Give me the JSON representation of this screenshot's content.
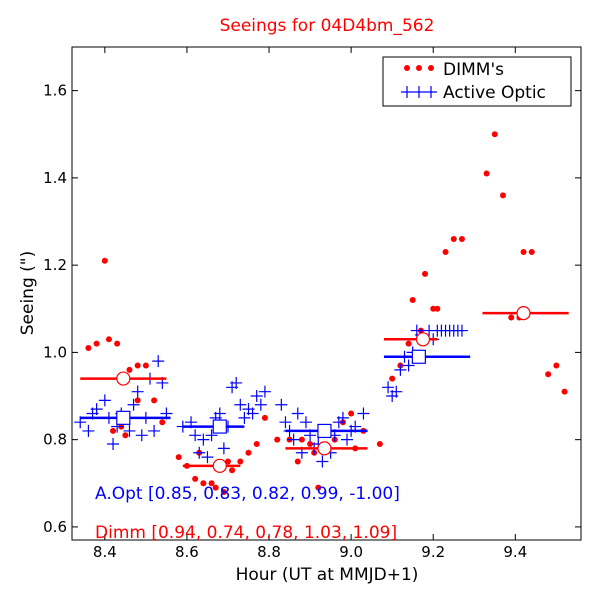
{
  "chart_data": {
    "type": "scatter",
    "title": "Seeings for 04D4bm_562",
    "xlabel": "Hour (UT at MMJD+1)",
    "ylabel": "Seeing (\")",
    "xlim": [
      8.32,
      9.56
    ],
    "ylim": [
      0.57,
      1.7
    ],
    "xticks": [
      8.4,
      8.6,
      8.8,
      9.0,
      9.2,
      9.4
    ],
    "xtick_labels": [
      "8.4",
      "8.6",
      "8.8",
      "9.0",
      "9.2",
      "9.4"
    ],
    "yticks": [
      0.6,
      0.8,
      1.0,
      1.2,
      1.4,
      1.6
    ],
    "ytick_labels": [
      "0.6",
      "0.8",
      "1.0",
      "1.2",
      "1.4",
      "1.6"
    ],
    "legend": {
      "position": "top-right",
      "entries": [
        "DIMM's",
        "Active Optic"
      ]
    },
    "colors": {
      "dimm": "#ff0000",
      "aopt": "#0000ff",
      "text": "#000000"
    },
    "annotations": {
      "aopt_summary": "A.Opt [0.85, 0.83, 0.82, 0.99, -1.00]",
      "dimm_summary": "Dimm [0.94, 0.74, 0.78, 1.03, 1.09]"
    },
    "series": [
      {
        "name": "DIMM's",
        "marker": "dot",
        "points": [
          [
            8.36,
            1.01
          ],
          [
            8.38,
            1.02
          ],
          [
            8.4,
            1.21
          ],
          [
            8.41,
            1.03
          ],
          [
            8.43,
            1.02
          ],
          [
            8.42,
            0.82
          ],
          [
            8.44,
            0.83
          ],
          [
            8.46,
            0.96
          ],
          [
            8.48,
            0.97
          ],
          [
            8.5,
            0.97
          ],
          [
            8.48,
            0.89
          ],
          [
            8.52,
            0.89
          ],
          [
            8.54,
            0.84
          ],
          [
            8.45,
            0.81
          ],
          [
            8.58,
            0.76
          ],
          [
            8.6,
            0.74
          ],
          [
            8.62,
            0.71
          ],
          [
            8.63,
            0.77
          ],
          [
            8.64,
            0.7
          ],
          [
            8.66,
            0.7
          ],
          [
            8.67,
            0.69
          ],
          [
            8.69,
            0.68
          ],
          [
            8.7,
            0.75
          ],
          [
            8.71,
            0.73
          ],
          [
            8.73,
            0.75
          ],
          [
            8.75,
            0.77
          ],
          [
            8.77,
            0.79
          ],
          [
            8.79,
            0.85
          ],
          [
            8.82,
            0.8
          ],
          [
            8.85,
            0.8
          ],
          [
            8.87,
            0.75
          ],
          [
            8.88,
            0.8
          ],
          [
            8.9,
            0.79
          ],
          [
            8.91,
            0.77
          ],
          [
            8.92,
            0.69
          ],
          [
            8.94,
            0.78
          ],
          [
            8.96,
            0.8
          ],
          [
            8.98,
            0.84
          ],
          [
            9.0,
            0.86
          ],
          [
            9.01,
            0.78
          ],
          [
            9.03,
            0.82
          ],
          [
            9.07,
            0.79
          ],
          [
            9.1,
            0.94
          ],
          [
            9.12,
            0.97
          ],
          [
            9.14,
            1.02
          ],
          [
            9.15,
            1.12
          ],
          [
            9.17,
            1.05
          ],
          [
            9.18,
            1.18
          ],
          [
            9.2,
            1.1
          ],
          [
            9.21,
            1.1
          ],
          [
            9.23,
            1.23
          ],
          [
            9.25,
            1.26
          ],
          [
            9.27,
            1.26
          ],
          [
            9.33,
            1.41
          ],
          [
            9.35,
            1.5
          ],
          [
            9.37,
            1.36
          ],
          [
            9.39,
            1.08
          ],
          [
            9.41,
            1.08
          ],
          [
            9.42,
            1.23
          ],
          [
            9.44,
            1.23
          ],
          [
            9.48,
            0.95
          ],
          [
            9.5,
            0.97
          ],
          [
            9.52,
            0.91
          ]
        ]
      },
      {
        "name": "Active Optic",
        "marker": "plus",
        "points": [
          [
            8.34,
            0.84
          ],
          [
            8.36,
            0.82
          ],
          [
            8.37,
            0.86
          ],
          [
            8.38,
            0.87
          ],
          [
            8.4,
            0.89
          ],
          [
            8.41,
            0.85
          ],
          [
            8.42,
            0.79
          ],
          [
            8.43,
            0.83
          ],
          [
            8.44,
            0.86
          ],
          [
            8.46,
            0.82
          ],
          [
            8.47,
            0.88
          ],
          [
            8.48,
            0.91
          ],
          [
            8.49,
            0.81
          ],
          [
            8.5,
            0.85
          ],
          [
            8.51,
            0.94
          ],
          [
            8.52,
            0.82
          ],
          [
            8.53,
            0.98
          ],
          [
            8.54,
            0.93
          ],
          [
            8.55,
            0.86
          ],
          [
            8.59,
            0.83
          ],
          [
            8.61,
            0.84
          ],
          [
            8.62,
            0.81
          ],
          [
            8.63,
            0.77
          ],
          [
            8.64,
            0.8
          ],
          [
            8.65,
            0.76
          ],
          [
            8.66,
            0.81
          ],
          [
            8.67,
            0.85
          ],
          [
            8.68,
            0.86
          ],
          [
            8.69,
            0.78
          ],
          [
            8.7,
            0.83
          ],
          [
            8.71,
            0.92
          ],
          [
            8.72,
            0.93
          ],
          [
            8.73,
            0.88
          ],
          [
            8.74,
            0.85
          ],
          [
            8.75,
            0.87
          ],
          [
            8.76,
            0.86
          ],
          [
            8.77,
            0.9
          ],
          [
            8.78,
            0.88
          ],
          [
            8.79,
            0.91
          ],
          [
            8.83,
            0.88
          ],
          [
            8.84,
            0.84
          ],
          [
            8.85,
            0.82
          ],
          [
            8.86,
            0.8
          ],
          [
            8.87,
            0.86
          ],
          [
            8.88,
            0.77
          ],
          [
            8.89,
            0.84
          ],
          [
            8.9,
            0.81
          ],
          [
            8.91,
            0.78
          ],
          [
            8.92,
            0.79
          ],
          [
            8.93,
            0.75
          ],
          [
            8.94,
            0.78
          ],
          [
            8.95,
            0.77
          ],
          [
            8.96,
            0.81
          ],
          [
            8.97,
            0.84
          ],
          [
            8.98,
            0.85
          ],
          [
            8.99,
            0.8
          ],
          [
            9.0,
            0.82
          ],
          [
            9.01,
            0.83
          ],
          [
            9.03,
            0.86
          ],
          [
            9.09,
            0.92
          ],
          [
            9.1,
            0.9
          ],
          [
            9.11,
            0.91
          ],
          [
            9.12,
            0.96
          ],
          [
            9.13,
            0.99
          ],
          [
            9.14,
            0.97
          ],
          [
            9.15,
            1.0
          ],
          [
            9.16,
            1.05
          ],
          [
            9.17,
            1.04
          ],
          [
            9.18,
            0.99
          ],
          [
            9.19,
            1.05
          ],
          [
            9.2,
            1.03
          ],
          [
            9.21,
            1.05
          ],
          [
            9.22,
            1.05
          ],
          [
            9.23,
            1.05
          ],
          [
            9.24,
            1.05
          ],
          [
            9.25,
            1.05
          ],
          [
            9.26,
            1.05
          ],
          [
            9.27,
            1.05
          ]
        ]
      }
    ],
    "segment_means": [
      {
        "series": "DIMM's",
        "x_start": 8.34,
        "x_end": 8.55,
        "x_marker": 8.445,
        "value": 0.94
      },
      {
        "series": "DIMM's",
        "x_start": 8.59,
        "x_end": 8.73,
        "x_marker": 8.68,
        "value": 0.74
      },
      {
        "series": "DIMM's",
        "x_start": 8.84,
        "x_end": 9.04,
        "x_marker": 8.935,
        "value": 0.78
      },
      {
        "series": "DIMM's",
        "x_start": 9.08,
        "x_end": 9.21,
        "x_marker": 9.175,
        "value": 1.03
      },
      {
        "series": "DIMM's",
        "x_start": 9.32,
        "x_end": 9.53,
        "x_marker": 9.42,
        "value": 1.09
      },
      {
        "series": "Active Optic",
        "x_start": 8.34,
        "x_end": 8.56,
        "x_marker": 8.445,
        "value": 0.85
      },
      {
        "series": "Active Optic",
        "x_start": 8.59,
        "x_end": 8.74,
        "x_marker": 8.68,
        "value": 0.83
      },
      {
        "series": "Active Optic",
        "x_start": 8.84,
        "x_end": 9.04,
        "x_marker": 8.935,
        "value": 0.82
      },
      {
        "series": "Active Optic",
        "x_start": 9.08,
        "x_end": 9.29,
        "x_marker": 9.165,
        "value": 0.99
      }
    ]
  }
}
